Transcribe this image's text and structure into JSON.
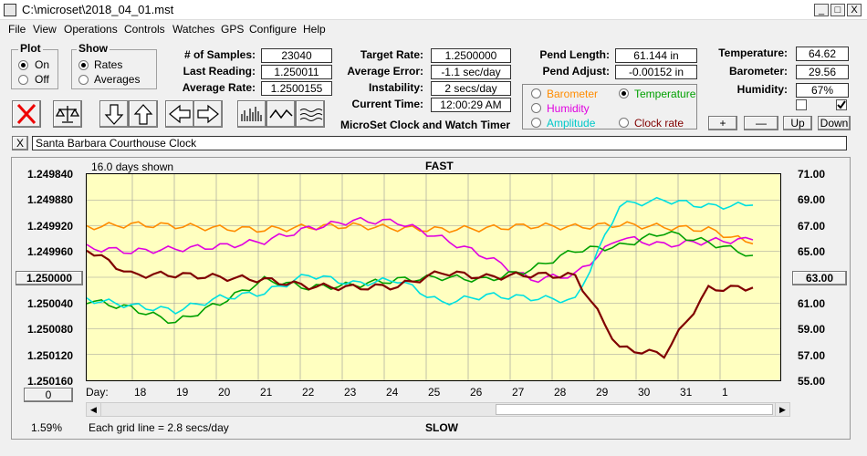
{
  "window": {
    "title": "C:\\microset\\2018_04_01.mst",
    "min": "_",
    "max": "□",
    "close": "X"
  },
  "menu": [
    "File",
    "View",
    "Operations",
    "Controls",
    "Watches",
    "GPS",
    "Configure",
    "Help"
  ],
  "plot_group": {
    "title": "Plot",
    "on": "On",
    "off": "Off",
    "selected": "On"
  },
  "show_group": {
    "title": "Show",
    "rates": "Rates",
    "averages": "Averages",
    "selected": "Rates"
  },
  "stats": {
    "samples_label": "# of Samples:",
    "samples": "23040",
    "last_label": "Last Reading:",
    "last": "1.250011",
    "avg_label": "Average Rate:",
    "avg": "1.2500155"
  },
  "rates": {
    "target_label": "Target Rate:",
    "target": "1.2500000",
    "error_label": "Average Error:",
    "error": "-1.1 sec/day",
    "instab_label": "Instability:",
    "instab": "2 secs/day",
    "time_label": "Current Time:",
    "time": "12:00:29 AM"
  },
  "app_name": "MicroSet Clock and Watch Timer",
  "pend": {
    "length_label": "Pend Length:",
    "length": "61.144 in",
    "adjust_label": "Pend Adjust:",
    "adjust": "-0.00152 in"
  },
  "series_select": {
    "barometer": "Barometer",
    "temperature": "Temperature",
    "humidity": "Humidity",
    "amplitude": "Amplitude",
    "clock_rate": "Clock rate",
    "selected": "Temperature"
  },
  "env": {
    "temp_label": "Temperature:",
    "temp": "64.62",
    "baro_label": "Barometer:",
    "baro": "29.56",
    "hum_label": "Humidity:",
    "hum": "67%"
  },
  "small_buttons": {
    "plus": "+",
    "minus": "—",
    "up": "Up",
    "down": "Down"
  },
  "checkboxes": {
    "left_checked": false,
    "right_checked": true
  },
  "clock_name": "Santa Barbara Courthouse Clock",
  "close_small": "X",
  "colors": {
    "barometer": "#ff8c00",
    "temperature": "#00a000",
    "humidity": "#e000e0",
    "amplitude": "#00e0e0",
    "clock_rate": "#800000",
    "plot_bg": "#ffffc0"
  },
  "chart_data": {
    "type": "line",
    "days_shown": "16.0 days shown",
    "top_label": "FAST",
    "bottom_label": "SLOW",
    "grid_note": "Each grid line = 2.8 secs/day",
    "left_ticks": [
      "1.249840",
      "1.249880",
      "1.249920",
      "1.249960",
      "1.250000",
      "1.250040",
      "1.250080",
      "1.250120",
      "1.250160"
    ],
    "right_ticks": [
      "71.00",
      "69.00",
      "67.00",
      "65.00",
      "63.00",
      "61.00",
      "59.00",
      "57.00",
      "55.00"
    ],
    "left_center": "1.250000",
    "right_center": "63.00",
    "left_bottom_button": "0",
    "percent": "1.59%",
    "x_prefix": "Day:",
    "x_ticks": [
      "18",
      "19",
      "20",
      "21",
      "22",
      "23",
      "24",
      "25",
      "26",
      "27",
      "28",
      "29",
      "30",
      "31",
      "1"
    ],
    "series": [
      {
        "name": "Barometer",
        "color": "#ff8c00",
        "values": [
          66.9,
          67.1,
          67.0,
          66.8,
          66.7,
          66.9,
          67.0,
          66.8,
          66.7,
          66.8,
          67.0,
          66.9,
          67.1,
          66.9,
          66.7,
          65.6
        ]
      },
      {
        "name": "Humidity",
        "color": "#e000e0",
        "values": [
          65.3,
          65.0,
          65.2,
          65.4,
          65.8,
          66.8,
          67.4,
          67.3,
          66.0,
          64.6,
          62.8,
          63.2,
          66.1,
          65.5,
          65.8,
          65.9
        ]
      },
      {
        "name": "Temperature",
        "color": "#00a000",
        "values": [
          61.2,
          60.6,
          59.5,
          61.0,
          62.8,
          62.2,
          62.4,
          62.8,
          63.0,
          62.8,
          63.6,
          65.1,
          65.4,
          66.5,
          65.7,
          64.7
        ]
      },
      {
        "name": "Amplitude",
        "color": "#00e0e0",
        "values": [
          61.3,
          60.8,
          60.4,
          61.4,
          61.8,
          63.2,
          62.5,
          62.8,
          61.0,
          61.6,
          61.4,
          61.2,
          68.6,
          69.0,
          68.5,
          68.6
        ]
      },
      {
        "name": "Clock rate",
        "color": "#800000",
        "values": [
          65.2,
          63.2,
          63.2,
          63.0,
          62.8,
          62.3,
          62.2,
          62.3,
          63.4,
          63.0,
          63.2,
          63.1,
          57.5,
          57.0,
          62.1,
          62.2
        ]
      }
    ],
    "ylim": [
      55,
      71
    ]
  }
}
